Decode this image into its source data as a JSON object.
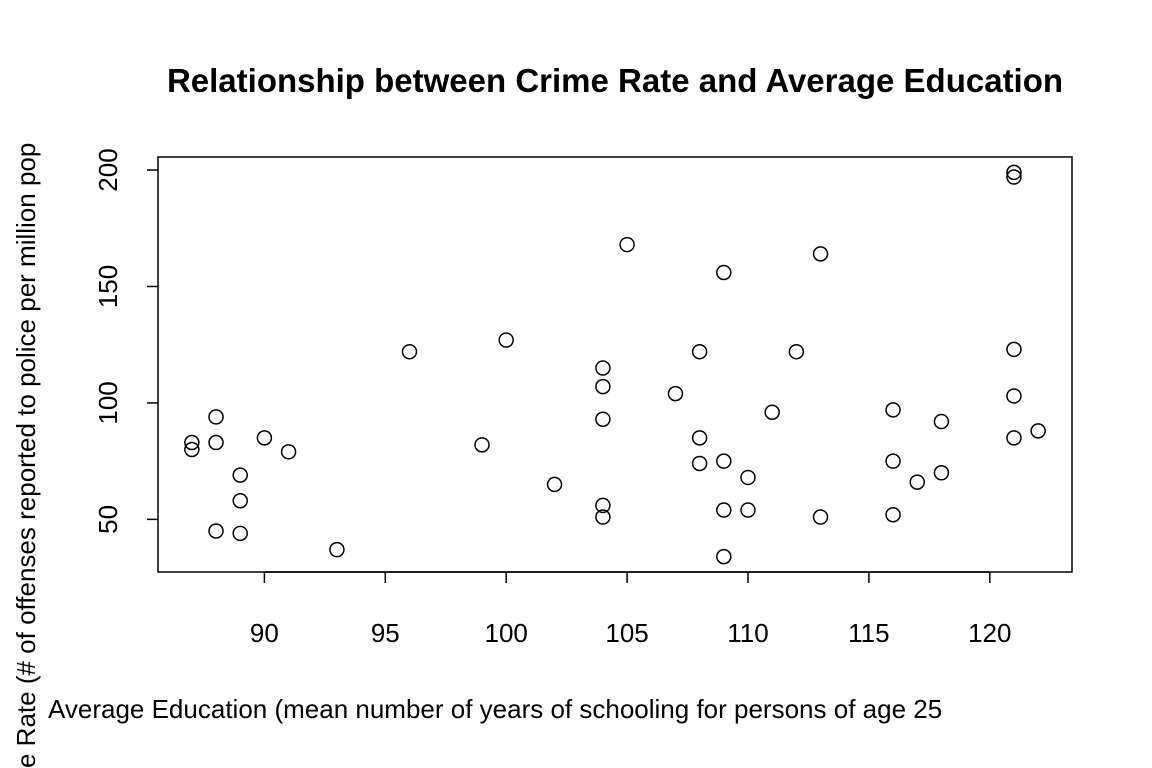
{
  "chart_data": {
    "type": "scatter",
    "title": "Relationship between Crime Rate and Average Education",
    "x_label": "Average Education (mean number of years of schooling for persons of age 25",
    "y_label": "e Rate (# of offenses reported to police per million pop",
    "x": [
      87,
      87,
      88,
      88,
      88,
      89,
      89,
      89,
      90,
      91,
      93,
      96,
      99,
      100,
      102,
      104,
      104,
      104,
      104,
      104,
      105,
      107,
      108,
      108,
      108,
      109,
      109,
      109,
      109,
      110,
      110,
      111,
      112,
      113,
      113,
      116,
      116,
      116,
      117,
      118,
      118,
      121,
      121,
      121,
      121,
      121,
      122
    ],
    "values": [
      83,
      80,
      94,
      83,
      45,
      69,
      58,
      44,
      85,
      79,
      37,
      122,
      82,
      127,
      65,
      115,
      107,
      93,
      56,
      51,
      168,
      104,
      122,
      85,
      74,
      156,
      75,
      54,
      34,
      68,
      54,
      96,
      122,
      164,
      51,
      97,
      75,
      52,
      66,
      92,
      70,
      199,
      197,
      123,
      103,
      85,
      88
    ],
    "color": "#000000",
    "xlim": [
      85.6,
      123.4
    ],
    "ylim": [
      27.4,
      205.6
    ],
    "xticks": [
      90,
      95,
      100,
      105,
      110,
      115,
      120
    ],
    "yticks": [
      50,
      100,
      150,
      200
    ]
  }
}
